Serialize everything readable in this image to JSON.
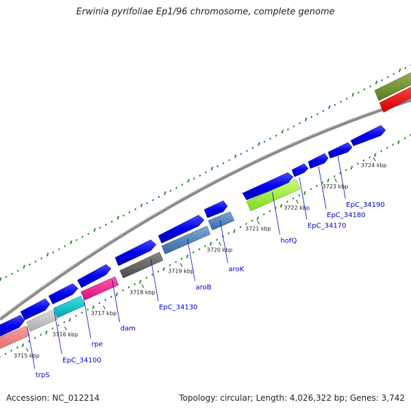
{
  "title": "Erwinia pyrifoliae Ep1/96 chromosome, complete genome",
  "footer": {
    "accession": "Accession: NC_012214",
    "stats": "Topology: circular; Length: 4,026,322 bp; Genes: 3,742"
  },
  "ruler": {
    "unit": "kbp",
    "ticks": [
      {
        "label": "3715 kbp",
        "kb": 3715
      },
      {
        "label": "3716 kbp",
        "kb": 3716
      },
      {
        "label": "3717 kbp",
        "kb": 3717
      },
      {
        "label": "3718 kbp",
        "kb": 3718
      },
      {
        "label": "3719 kbp",
        "kb": 3719
      },
      {
        "label": "3720 kbp",
        "kb": 3720
      },
      {
        "label": "3721 kbp",
        "kb": 3721
      },
      {
        "label": "3722 kbp",
        "kb": 3722
      },
      {
        "label": "3723 kbp",
        "kb": 3723
      },
      {
        "label": "3724 kbp",
        "kb": 3724
      }
    ]
  },
  "gene_labels": [
    {
      "name": "trpS",
      "kb": 3715.05
    },
    {
      "name": "EpC_34100",
      "kb": 3715.75
    },
    {
      "name": "rpe",
      "kb": 3716.5
    },
    {
      "name": "dam",
      "kb": 3717.25
    },
    {
      "name": "EpC_34130",
      "kb": 3718.25
    },
    {
      "name": "aroB",
      "kb": 3719.2
    },
    {
      "name": "aroK",
      "kb": 3720.05
    },
    {
      "name": "hofQ",
      "kb": 3721.4
    },
    {
      "name": "EpC_34170",
      "kb": 3722.1
    },
    {
      "name": "EpC_34180",
      "kb": 3722.6
    },
    {
      "name": "EpC_34190",
      "kb": 3723.1
    }
  ],
  "colors": {
    "backbone": "#8a8a8a",
    "cds": "#0000ee",
    "gc_skew_ticks": "#2e8b2e",
    "label": "#0000cc",
    "ruler_text": "#222222"
  }
}
